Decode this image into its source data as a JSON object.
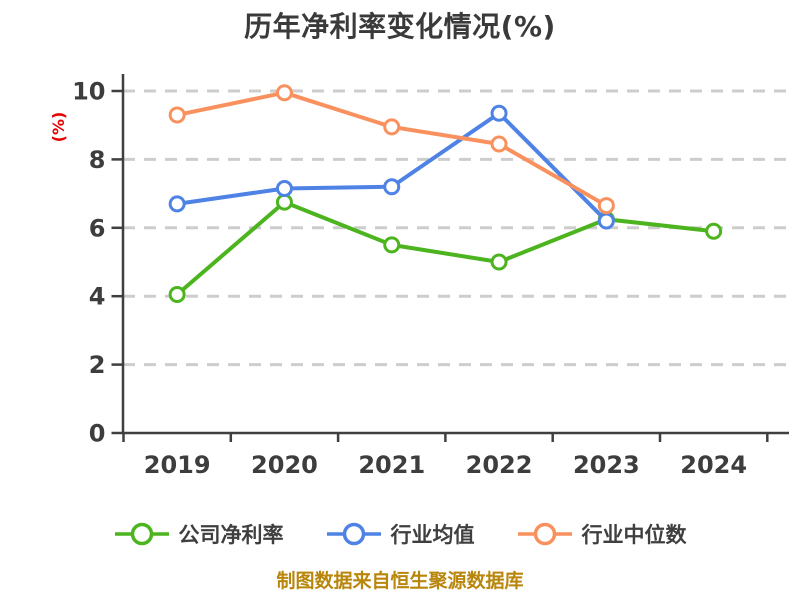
{
  "chart_data": {
    "type": "line",
    "title": "历年净利率变化情况(%)",
    "ylabel": "(%)",
    "xlabel": "",
    "categories": [
      "2019",
      "2020",
      "2021",
      "2022",
      "2023",
      "2024"
    ],
    "yticks": [
      0,
      2,
      4,
      6,
      8,
      10
    ],
    "ylim": [
      0,
      10
    ],
    "grid": "horizontal-dashed",
    "legend_position": "bottom",
    "series": [
      {
        "name": "公司净利率",
        "color": "#4CB41E",
        "values": [
          4.05,
          6.75,
          5.5,
          5.0,
          6.25,
          5.9
        ]
      },
      {
        "name": "行业均值",
        "color": "#4E82E5",
        "values": [
          6.7,
          7.15,
          7.2,
          9.35,
          6.2,
          null
        ]
      },
      {
        "name": "行业中位数",
        "color": "#F9915F",
        "values": [
          9.3,
          9.95,
          8.95,
          8.45,
          6.65,
          null
        ]
      }
    ],
    "source_note": "制图数据来自恒生聚源数据库"
  },
  "colors": {
    "background": "#FFFFFF",
    "title": "#3A3A3A",
    "axis": "#3F3F3F",
    "tick_label": "#3D3D3D",
    "grid": "#CDCDCD",
    "ylabel": "#E60000",
    "footer": "#B8860B",
    "marker_fill": "#FFFFFF"
  }
}
